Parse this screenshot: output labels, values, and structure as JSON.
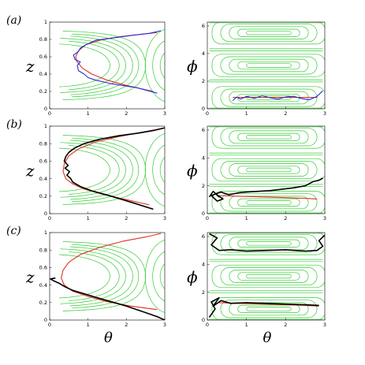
{
  "colors": {
    "streamline": "#33cc33",
    "solution": "#e0301e",
    "trajectory_a": "#1f2fd6",
    "trajectory_bc": "#000000"
  },
  "chart_data": [
    {
      "panel_label": "(a)",
      "type": "line",
      "xlabel": "",
      "ylabel": "z",
      "xlim": [
        0,
        3
      ],
      "ylim": [
        0,
        1
      ],
      "xticks": [
        "0",
        "1",
        "2",
        "3"
      ],
      "yticks": [
        "0",
        "0.2",
        "0.4",
        "0.6",
        "0.8",
        "1"
      ],
      "series": [
        {
          "role": "solution",
          "x": [
            2.7,
            2.0,
            1.5,
            1.1,
            0.85,
            0.7,
            0.68,
            0.75,
            0.95,
            1.3,
            1.8,
            2.4,
            2.8
          ],
          "y": [
            0.2,
            0.27,
            0.33,
            0.4,
            0.47,
            0.55,
            0.6,
            0.67,
            0.74,
            0.79,
            0.83,
            0.86,
            0.88
          ]
        },
        {
          "role": "trajectory",
          "x": [
            2.8,
            2.3,
            1.6,
            1.2,
            1.0,
            0.9,
            0.75,
            0.72,
            0.8,
            0.66,
            0.62,
            0.75,
            0.8,
            0.95,
            1.2,
            1.7,
            2.2,
            2.6,
            2.9
          ],
          "y": [
            0.18,
            0.24,
            0.29,
            0.33,
            0.36,
            0.4,
            0.44,
            0.5,
            0.54,
            0.57,
            0.62,
            0.66,
            0.7,
            0.74,
            0.79,
            0.82,
            0.85,
            0.87,
            0.9
          ]
        }
      ]
    },
    {
      "panel_label": "",
      "type": "line",
      "xlabel": "",
      "ylabel": "ϕ",
      "xlim": [
        0,
        3
      ],
      "ylim": [
        0,
        6.283
      ],
      "xticks": [
        "0",
        "1",
        "2",
        "3"
      ],
      "yticks": [
        "0",
        "2",
        "4",
        "6"
      ],
      "series": [
        {
          "role": "solution",
          "x": [
            0.65,
            1.0,
            1.5,
            2.0,
            2.5,
            2.8
          ],
          "y": [
            0.82,
            0.82,
            0.82,
            0.82,
            0.82,
            0.82
          ]
        },
        {
          "role": "trajectory",
          "x": [
            0.65,
            0.75,
            0.85,
            1.0,
            1.2,
            1.4,
            1.6,
            1.8,
            2.0,
            2.2,
            2.4,
            2.6,
            2.8,
            2.95
          ],
          "y": [
            0.6,
            0.85,
            0.7,
            0.9,
            0.75,
            0.95,
            0.8,
            0.7,
            0.85,
            0.9,
            0.75,
            0.65,
            0.9,
            1.3
          ]
        }
      ]
    },
    {
      "panel_label": "(b)",
      "type": "line",
      "xlabel": "",
      "ylabel": "z",
      "xlim": [
        0,
        3
      ],
      "ylim": [
        0,
        1
      ],
      "xticks": [
        "0",
        "1",
        "2",
        "3"
      ],
      "yticks": [
        "0",
        "0.2",
        "0.4",
        "0.6",
        "0.8",
        "1"
      ],
      "series": [
        {
          "role": "solution",
          "x": [
            2.6,
            2.0,
            1.4,
            0.9,
            0.6,
            0.42,
            0.35,
            0.38,
            0.5,
            0.75,
            1.2,
            1.8,
            2.4,
            2.9
          ],
          "y": [
            0.1,
            0.16,
            0.22,
            0.28,
            0.34,
            0.4,
            0.48,
            0.57,
            0.66,
            0.74,
            0.82,
            0.88,
            0.93,
            0.97
          ]
        },
        {
          "role": "trajectory",
          "x": [
            2.7,
            2.2,
            1.6,
            1.1,
            0.8,
            0.6,
            0.55,
            0.45,
            0.52,
            0.4,
            0.48,
            0.38,
            0.42,
            0.5,
            0.65,
            0.9,
            1.3,
            1.8,
            2.3,
            2.7,
            3.0
          ],
          "y": [
            0.05,
            0.12,
            0.2,
            0.26,
            0.31,
            0.36,
            0.4,
            0.44,
            0.48,
            0.52,
            0.55,
            0.6,
            0.65,
            0.7,
            0.75,
            0.8,
            0.85,
            0.89,
            0.92,
            0.95,
            0.98
          ]
        }
      ]
    },
    {
      "panel_label": "",
      "type": "line",
      "xlabel": "",
      "ylabel": "ϕ",
      "xlim": [
        0,
        3
      ],
      "ylim": [
        0,
        6.283
      ],
      "xticks": [
        "0",
        "1",
        "2",
        "3"
      ],
      "yticks": [
        "0",
        "2",
        "4",
        "6"
      ],
      "series": [
        {
          "role": "solution",
          "x": [
            0.3,
            0.8,
            1.4,
            2.0,
            2.5,
            2.8
          ],
          "y": [
            1.3,
            1.25,
            1.2,
            1.15,
            1.1,
            1.05
          ]
        },
        {
          "role": "trajectory",
          "x": [
            0.05,
            0.15,
            0.3,
            0.2,
            0.4,
            0.25,
            0.1,
            0.35,
            0.55,
            0.8,
            1.0,
            1.3,
            1.6,
            1.9,
            2.2,
            2.5,
            2.7,
            2.85,
            2.95
          ],
          "y": [
            1.2,
            1.6,
            1.2,
            1.45,
            1.05,
            0.9,
            1.3,
            1.55,
            1.35,
            1.5,
            1.55,
            1.6,
            1.65,
            1.75,
            1.85,
            2.0,
            2.3,
            2.4,
            2.55
          ]
        }
      ]
    },
    {
      "panel_label": "(c)",
      "type": "line",
      "xlabel": "θ",
      "ylabel": "z",
      "xlim": [
        0,
        3
      ],
      "ylim": [
        0,
        1
      ],
      "xticks": [
        "0",
        "1",
        "2",
        "3"
      ],
      "yticks": [
        "0",
        "0.2",
        "0.4",
        "0.6",
        "0.8",
        "1"
      ],
      "series": [
        {
          "role": "solution",
          "x": [
            2.8,
            2.1,
            1.5,
            1.0,
            0.6,
            0.38,
            0.3,
            0.35,
            0.5,
            0.8,
            1.3,
            1.9,
            2.5,
            2.9
          ],
          "y": [
            0.12,
            0.16,
            0.21,
            0.27,
            0.33,
            0.4,
            0.48,
            0.57,
            0.66,
            0.75,
            0.83,
            0.9,
            0.95,
            0.99
          ]
        },
        {
          "role": "trajectory",
          "x": [
            3.0,
            2.8,
            2.4,
            2.0,
            1.6,
            1.2,
            0.9,
            0.6,
            0.4,
            0.25,
            0.1,
            0.02,
            0.15
          ],
          "y": [
            0.0,
            0.04,
            0.1,
            0.16,
            0.21,
            0.26,
            0.3,
            0.34,
            0.38,
            0.42,
            0.45,
            0.47,
            0.48
          ]
        }
      ]
    },
    {
      "panel_label": "",
      "type": "line",
      "xlabel": "θ",
      "ylabel": "ϕ",
      "xlim": [
        0,
        3
      ],
      "ylim": [
        0,
        6.283
      ],
      "xticks": [
        "0",
        "1",
        "2",
        "3"
      ],
      "yticks": [
        "0",
        "2",
        "4",
        "6"
      ],
      "series": [
        {
          "role": "solution",
          "x": [
            0.3,
            0.8,
            1.4,
            2.0,
            2.5,
            2.85
          ],
          "y": [
            1.25,
            1.2,
            1.15,
            1.1,
            1.05,
            1.0
          ]
        },
        {
          "role": "trajectory",
          "x": [
            0.05,
            0.2,
            0.1,
            0.3,
            0.15,
            0.35,
            0.6,
            1.0,
            1.5,
            2.0,
            2.5,
            2.85
          ],
          "y": [
            0.2,
            0.8,
            1.3,
            1.6,
            1.0,
            1.4,
            1.2,
            1.25,
            1.2,
            1.15,
            1.1,
            1.05
          ]
        },
        {
          "role": "trajectory",
          "x": [
            0.05,
            0.25,
            0.1,
            0.3,
            0.6,
            1.0,
            1.5,
            2.0,
            2.5,
            2.8,
            2.95,
            2.85,
            3.0
          ],
          "y": [
            6.2,
            5.9,
            5.4,
            5.0,
            5.05,
            4.95,
            5.0,
            5.05,
            4.95,
            5.0,
            5.3,
            5.7,
            6.1
          ]
        }
      ]
    }
  ]
}
